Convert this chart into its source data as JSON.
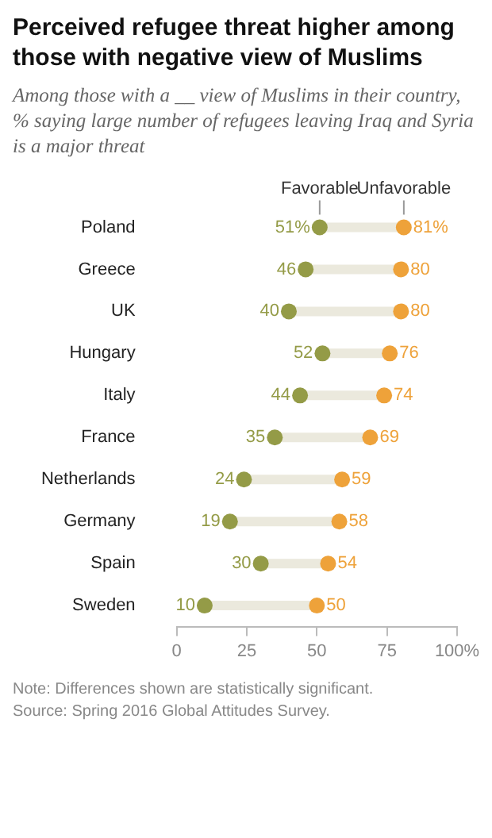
{
  "chart_data": {
    "type": "scatter",
    "orientation": "horizontal",
    "title": "Perceived refugee threat higher among those with negative view of Muslims",
    "subtitle": "Among those with a __ view of Muslims in their country, % saying large number of refugees leaving Iraq and Syria is a major threat",
    "categories": [
      "Poland",
      "Greece",
      "UK",
      "Hungary",
      "Italy",
      "France",
      "Netherlands",
      "Germany",
      "Spain",
      "Sweden"
    ],
    "series": [
      {
        "name": "Favorable",
        "color": "#949b47",
        "values": [
          51,
          46,
          40,
          52,
          44,
          35,
          24,
          19,
          30,
          10
        ],
        "value_labels": [
          "51%",
          "46",
          "40",
          "52",
          "44",
          "35",
          "24",
          "19",
          "30",
          "10"
        ]
      },
      {
        "name": "Unfavorable",
        "color": "#eea23a",
        "values": [
          81,
          80,
          80,
          76,
          74,
          69,
          59,
          58,
          54,
          50
        ],
        "value_labels": [
          "81%",
          "80",
          "80",
          "76",
          "74",
          "69",
          "59",
          "58",
          "54",
          "50"
        ]
      }
    ],
    "xlim": [
      0,
      100
    ],
    "xticks": [
      0,
      25,
      50,
      75,
      {
        "value": 100,
        "label": "100%"
      }
    ],
    "grid": false,
    "marker": "circle",
    "annotations": [
      "Note: Differences shown are statistically significant.",
      "Source: Spring 2016 Global Attitudes Survey."
    ]
  }
}
